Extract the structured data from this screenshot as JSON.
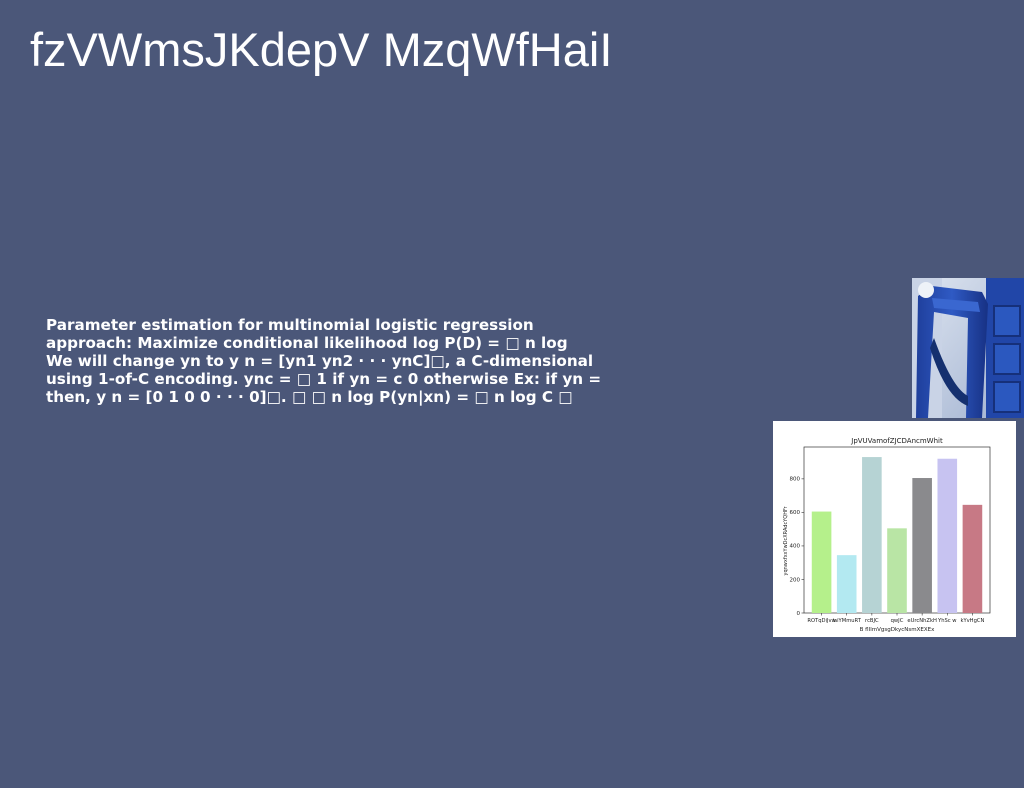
{
  "slide": {
    "title": "fzVWmsJKdepV MzqWfHaiI",
    "body_lines": [
      "Parameter estimation for multinomial logistic regression",
      "approach: Maximize conditional likelihood log P(D) = □ n log",
      "We will change yn to y n = [yn1 yn2 · · · ynC]□, a C-dimensional",
      "using 1-of-C encoding. ync = □ 1 if yn = c 0 otherwise Ex: if yn =",
      "then, y n = [0 1 0 0 · · · 0]□. □ □ n log P(yn|xn) = □ n log C □"
    ]
  },
  "colors": {
    "background": "#4b5779",
    "text": "#ffffff"
  },
  "photo": {
    "alt": "blue-wooden-chair-photo"
  },
  "chart_data": {
    "type": "bar",
    "title": "JpVUVamofZJCDAncmWhit",
    "xlabel": "B flIlmVgsgDkycNsmXEXEx",
    "ylabel": "yqnwxfxxYwDcXRAdcYQHFr",
    "categories": [
      "ROTqDiJvw",
      "iaiYMmuRT",
      "rcBJC",
      "qwJC",
      "eUrcNhZkH",
      "YhSc w",
      "kYvHgCN"
    ],
    "values": [
      605,
      345,
      930,
      505,
      805,
      920,
      645
    ],
    "colors": [
      "#b5f08b",
      "#b3e9f1",
      "#b6d3d4",
      "#b9e5a5",
      "#8a8a8d",
      "#c7c3f1",
      "#c77985"
    ],
    "ylim": [
      0,
      990
    ],
    "yticks": [
      0,
      200,
      400,
      600,
      800
    ],
    "grid": false,
    "legend": "none"
  }
}
